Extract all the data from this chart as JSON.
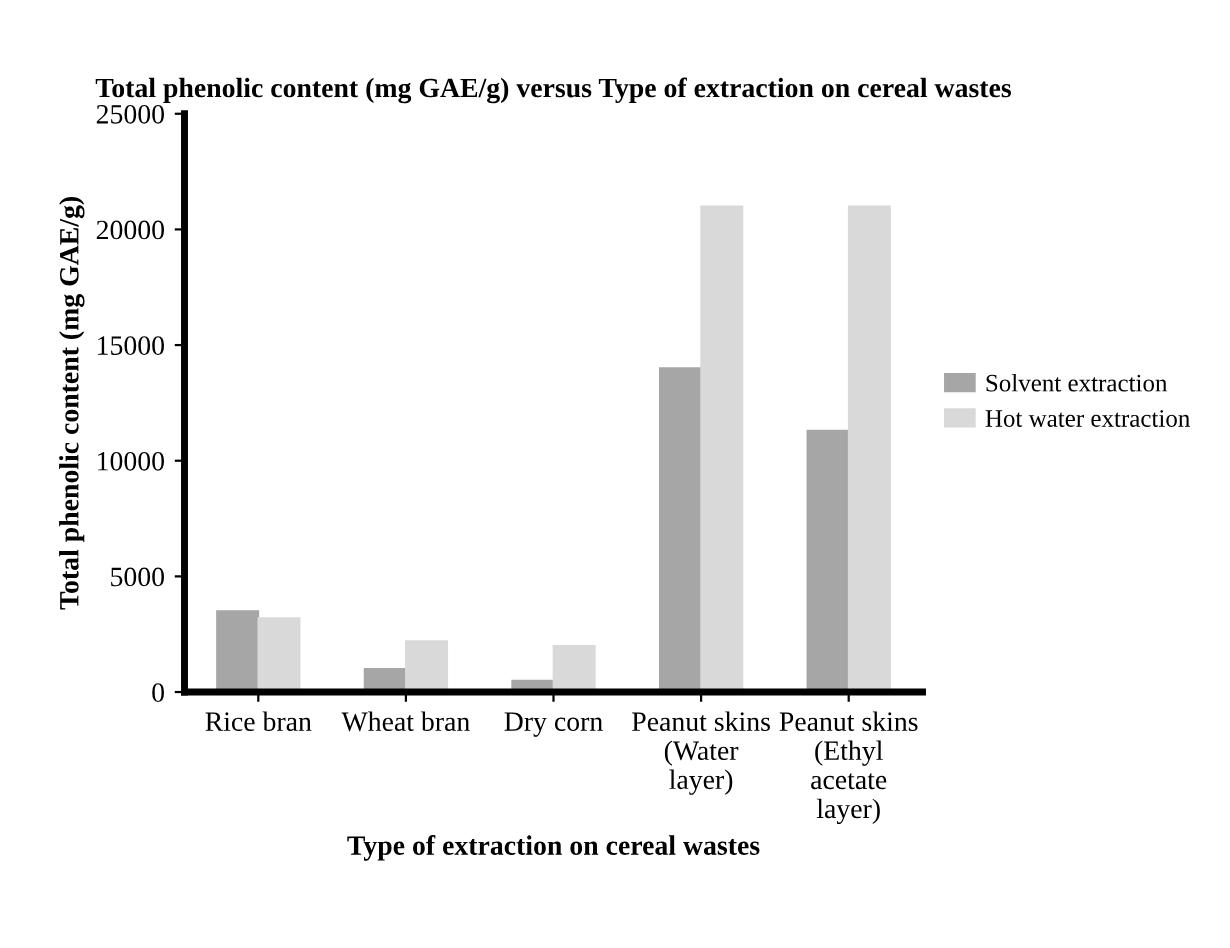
{
  "chart_data": {
    "type": "bar",
    "title": "Total phenolic content (mg GAE/g) versus Type of extraction on cereal wastes",
    "xlabel": "Type of extraction on cereal wastes",
    "ylabel": "Total phenolic content (mg GAE/g)",
    "categories": [
      "Rice bran",
      "Wheat bran",
      "Dry corn",
      "Peanut skins (Water layer)",
      "Peanut skins (Ethyl acetate layer)"
    ],
    "series": [
      {
        "name": "Solvent extraction",
        "color": "#a6a6a6",
        "values": [
          3500,
          1000,
          500,
          14000,
          11300
        ]
      },
      {
        "name": "Hot water extraction",
        "color": "#d9d9d9",
        "values": [
          3200,
          2200,
          2000,
          21000,
          21000
        ]
      }
    ],
    "ylim": [
      0,
      25000
    ],
    "yticks": [
      0,
      5000,
      10000,
      15000,
      20000,
      25000
    ],
    "legend": "right",
    "grid": false
  }
}
